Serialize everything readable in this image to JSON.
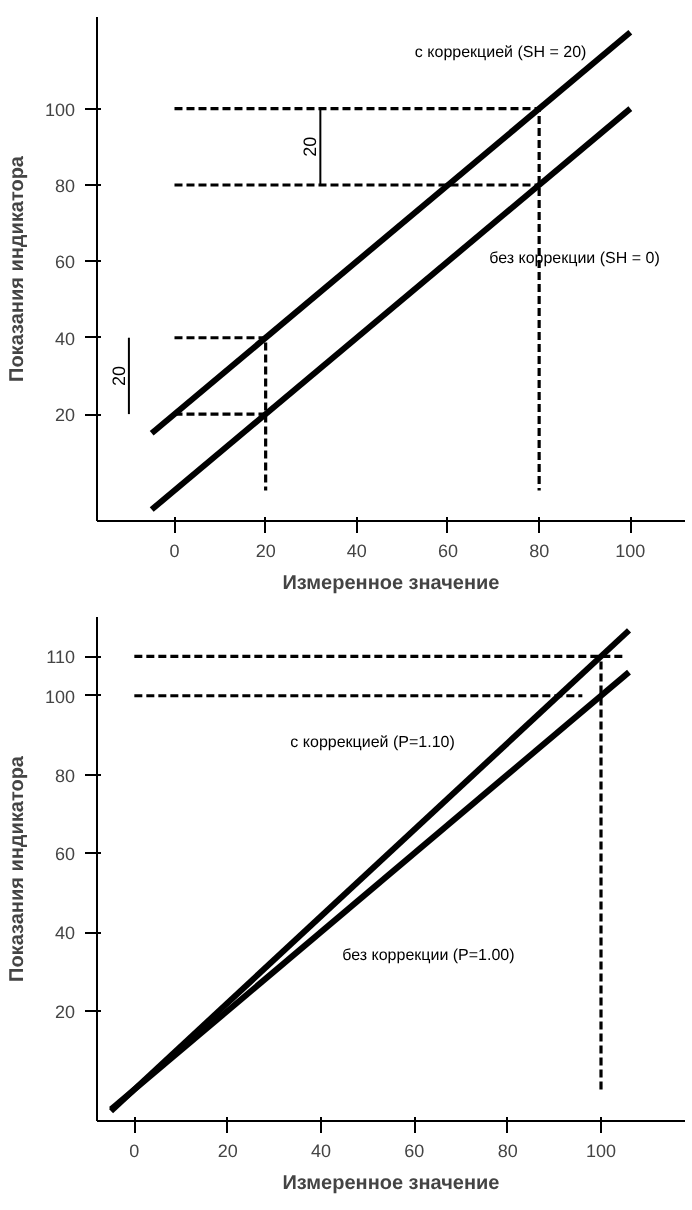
{
  "chart_data": [
    {
      "type": "line",
      "xlabel": "Измеренное значение",
      "ylabel": "Показания индикатора",
      "xlim": [
        -17,
        112
      ],
      "ylim": [
        -8,
        124
      ],
      "xticks": [
        0,
        20,
        40,
        60,
        80,
        100
      ],
      "yticks": [
        20,
        40,
        60,
        80,
        100
      ],
      "grid": false,
      "legend": false,
      "series": [
        {
          "name": "с коррекцией (SH = 20)",
          "color": "#000000",
          "x": [
            -5,
            100
          ],
          "values": [
            15,
            120
          ]
        },
        {
          "name": "без коррекции (SH = 0)",
          "color": "#000000",
          "x": [
            -5,
            100
          ],
          "values": [
            -5,
            100
          ]
        },
        {
          "color": "#000000",
          "line_style": "dashed",
          "x": [
            0,
            80,
            80
          ],
          "values": [
            100,
            100,
            0
          ]
        },
        {
          "color": "#000000",
          "line_style": "dashed",
          "x": [
            0,
            80
          ],
          "values": [
            80,
            80
          ]
        },
        {
          "color": "#000000",
          "line_style": "dashed",
          "x": [
            0,
            20,
            20
          ],
          "values": [
            40,
            40,
            0
          ]
        },
        {
          "color": "#000000",
          "line_style": "dashed",
          "x": [
            0,
            20
          ],
          "values": [
            20,
            20
          ]
        },
        {
          "color": "#000000",
          "x": [
            32,
            32
          ],
          "values": [
            80,
            100
          ]
        },
        {
          "color": "#000000",
          "x": [
            -10,
            -10
          ],
          "values": [
            20,
            40
          ]
        }
      ],
      "annotations": [
        "20",
        "20"
      ]
    },
    {
      "type": "line",
      "xlabel": "Измеренное значение",
      "ylabel": "Показания индикатора",
      "xlim": [
        -8,
        118
      ],
      "ylim": [
        -8,
        120
      ],
      "xticks": [
        0,
        20,
        40,
        60,
        80,
        100
      ],
      "yticks": [
        20,
        40,
        60,
        80,
        100,
        110
      ],
      "grid": false,
      "legend": false,
      "series": [
        {
          "name": "с коррекцией (P=1.10)",
          "color": "#000000",
          "x": [
            -5,
            106
          ],
          "values": [
            -5.5,
            116.6
          ]
        },
        {
          "name": "без коррекции (P=1.00)",
          "color": "#000000",
          "x": [
            -5,
            106
          ],
          "values": [
            -5,
            106
          ]
        },
        {
          "color": "#000000",
          "line_style": "dashed",
          "x": [
            0,
            105
          ],
          "values": [
            110,
            110
          ]
        },
        {
          "color": "#000000",
          "line_style": "dashed",
          "x": [
            0,
            96
          ],
          "values": [
            100,
            100
          ]
        },
        {
          "color": "#000000",
          "line_style": "dashed",
          "x": [
            100,
            100
          ],
          "values": [
            0,
            110
          ]
        }
      ]
    }
  ]
}
